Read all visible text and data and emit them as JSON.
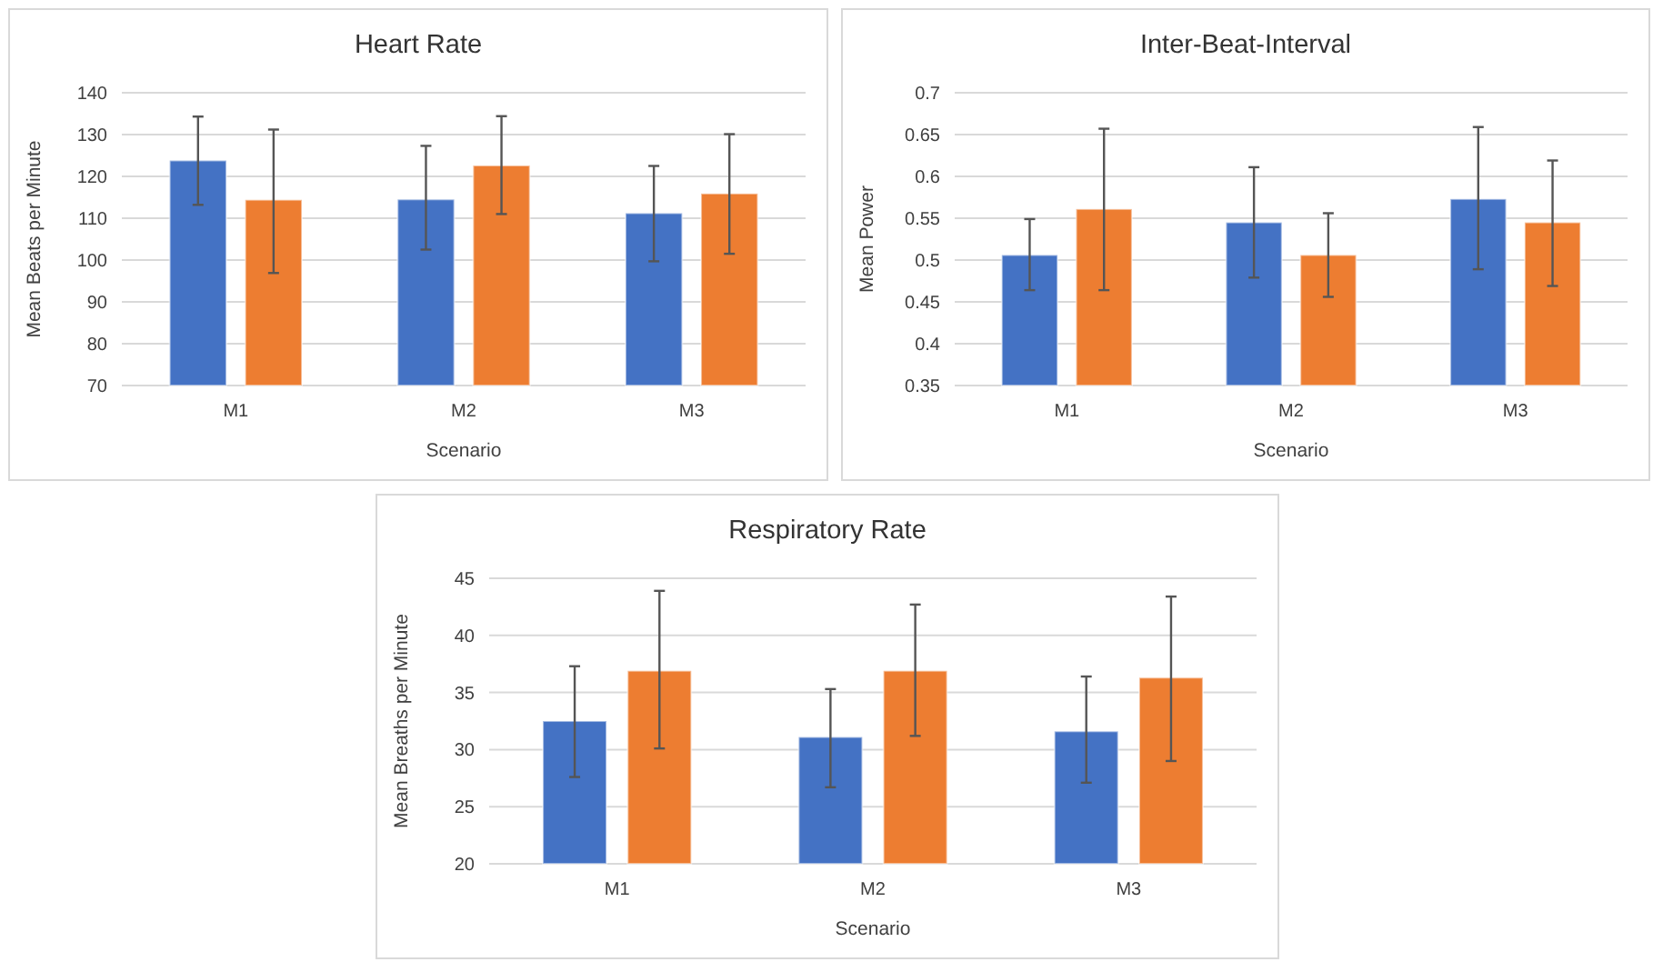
{
  "chart_data": [
    {
      "type": "bar",
      "title": "Heart Rate",
      "xlabel": "Scenario",
      "ylabel": "Mean Beats per Minute",
      "categories": [
        "M1",
        "M2",
        "M3"
      ],
      "ylim": [
        70,
        140
      ],
      "yticks": [
        70,
        80,
        90,
        100,
        110,
        120,
        130,
        140
      ],
      "grid": "y",
      "series": [
        {
          "color": "#4472c4",
          "values": [
            123.8,
            114.5,
            111.2
          ],
          "errors": [
            [
              113.2,
              134.3
            ],
            [
              102.5,
              127.3
            ],
            [
              99.7,
              122.5
            ]
          ]
        },
        {
          "color": "#ed7d31",
          "values": [
            114.4,
            122.6,
            115.9
          ],
          "errors": [
            [
              96.9,
              131.2
            ],
            [
              111.0,
              134.4
            ],
            [
              101.5,
              130.1
            ]
          ]
        }
      ]
    },
    {
      "type": "bar",
      "title": "Inter-Beat-Interval",
      "xlabel": "Scenario",
      "ylabel": "Mean Power",
      "categories": [
        "M1",
        "M2",
        "M3"
      ],
      "ylim": [
        0.35,
        0.7
      ],
      "yticks": [
        0.35,
        0.4,
        0.45,
        0.5,
        0.55,
        0.6,
        0.65,
        0.7
      ],
      "grid": "y",
      "series": [
        {
          "color": "#4472c4",
          "values": [
            0.506,
            0.545,
            0.573
          ],
          "errors": [
            [
              0.464,
              0.549
            ],
            [
              0.479,
              0.611
            ],
            [
              0.489,
              0.659
            ]
          ]
        },
        {
          "color": "#ed7d31",
          "values": [
            0.561,
            0.506,
            0.545
          ],
          "errors": [
            [
              0.464,
              0.657
            ],
            [
              0.456,
              0.556
            ],
            [
              0.469,
              0.619
            ]
          ]
        }
      ]
    },
    {
      "type": "bar",
      "title": "Respiratory Rate",
      "xlabel": "Scenario",
      "ylabel": "Mean Breaths per Minute",
      "categories": [
        "M1",
        "M2",
        "M3"
      ],
      "ylim": [
        20,
        45
      ],
      "yticks": [
        20,
        25,
        30,
        35,
        40,
        45
      ],
      "grid": "y",
      "series": [
        {
          "color": "#4472c4",
          "values": [
            32.5,
            31.1,
            31.6
          ],
          "errors": [
            [
              27.6,
              37.3
            ],
            [
              26.7,
              35.3
            ],
            [
              27.1,
              36.4
            ]
          ]
        },
        {
          "color": "#ed7d31",
          "values": [
            36.9,
            36.9,
            36.3
          ],
          "errors": [
            [
              30.1,
              43.9
            ],
            [
              31.2,
              42.7
            ],
            [
              29.0,
              43.4
            ]
          ]
        }
      ]
    }
  ]
}
